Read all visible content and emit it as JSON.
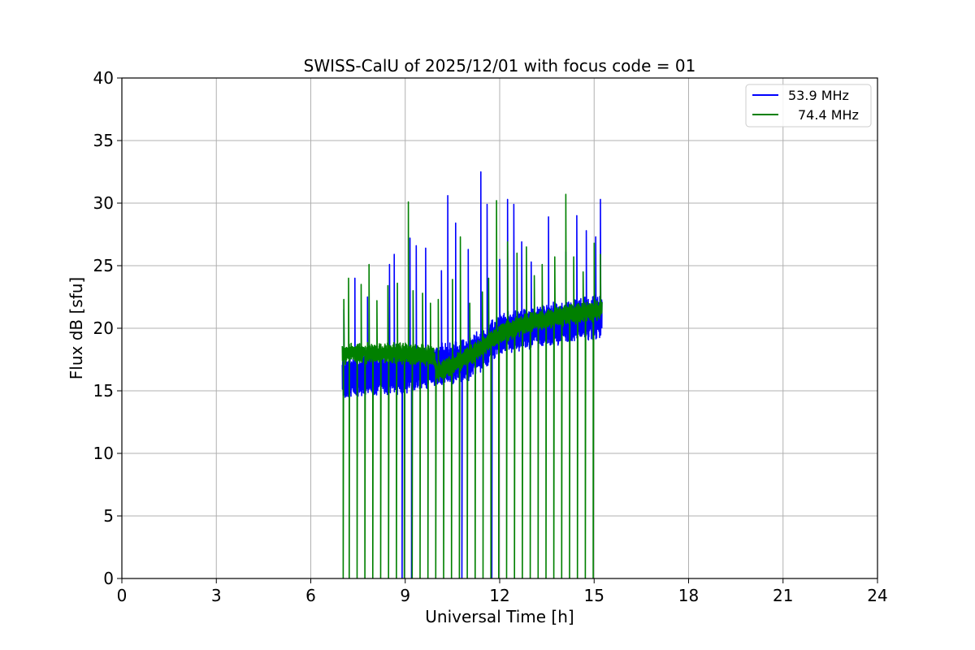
{
  "chart_data": {
    "type": "line",
    "title": "SWISS-CalU of 2025/12/01 with focus code = 01",
    "xlabel": "Universal Time [h]",
    "ylabel": "Flux dB [sfu]",
    "xlim": [
      0,
      24
    ],
    "ylim": [
      0,
      40
    ],
    "xticks": [
      0,
      3,
      6,
      9,
      12,
      15,
      18,
      21,
      24
    ],
    "yticks": [
      0,
      5,
      10,
      15,
      20,
      25,
      30,
      35,
      40
    ],
    "grid": true,
    "legend_position": "top-right",
    "x_range_of_data": [
      7.0,
      15.25
    ],
    "series": [
      {
        "name": "53.9 MHz",
        "color": "#0000ff",
        "baseline": [
          [
            7.0,
            16.0
          ],
          [
            9.0,
            16.5
          ],
          [
            10.0,
            17.0
          ],
          [
            11.0,
            17.5
          ],
          [
            12.0,
            19.5
          ],
          [
            13.0,
            20.0
          ],
          [
            14.0,
            20.5
          ],
          [
            15.25,
            21.0
          ]
        ],
        "oscillation_amplitude": 1.5,
        "spikes": [
          [
            7.05,
            21.5
          ],
          [
            7.4,
            24.0
          ],
          [
            7.8,
            22.5
          ],
          [
            8.5,
            25.1
          ],
          [
            8.65,
            25.9
          ],
          [
            9.15,
            27.2
          ],
          [
            9.35,
            26.6
          ],
          [
            9.65,
            26.4
          ],
          [
            10.15,
            24.6
          ],
          [
            10.35,
            30.6
          ],
          [
            10.6,
            28.4
          ],
          [
            11.0,
            26.3
          ],
          [
            11.4,
            32.5
          ],
          [
            11.6,
            29.9
          ],
          [
            12.0,
            25.5
          ],
          [
            12.25,
            30.3
          ],
          [
            12.45,
            29.9
          ],
          [
            12.7,
            26.9
          ],
          [
            13.0,
            25.3
          ],
          [
            13.55,
            28.9
          ],
          [
            14.1,
            26.1
          ],
          [
            14.45,
            29.0
          ],
          [
            14.75,
            27.8
          ],
          [
            15.05,
            27.3
          ],
          [
            15.2,
            30.3
          ]
        ],
        "dropout_times": [
          8.9,
          9.2,
          10.8,
          11.75
        ]
      },
      {
        "name": "74.4 MHz",
        "color": "#008000",
        "baseline": [
          [
            7.0,
            18.0
          ],
          [
            9.0,
            18.0
          ],
          [
            9.9,
            17.8
          ],
          [
            10.0,
            16.5
          ],
          [
            10.5,
            17.0
          ],
          [
            11.0,
            17.8
          ],
          [
            12.0,
            19.5
          ],
          [
            13.0,
            20.5
          ],
          [
            14.0,
            21.0
          ],
          [
            15.25,
            21.5
          ]
        ],
        "oscillation_amplitude": 0.6,
        "spikes": [
          [
            7.05,
            22.3
          ],
          [
            7.2,
            24.0
          ],
          [
            7.6,
            23.5
          ],
          [
            7.85,
            25.1
          ],
          [
            8.1,
            22.2
          ],
          [
            8.45,
            23.4
          ],
          [
            8.75,
            23.6
          ],
          [
            9.1,
            30.1
          ],
          [
            9.25,
            23.0
          ],
          [
            9.55,
            22.8
          ],
          [
            9.8,
            22.0
          ],
          [
            10.05,
            22.3
          ],
          [
            10.5,
            23.9
          ],
          [
            10.75,
            27.3
          ],
          [
            11.05,
            22.0
          ],
          [
            11.45,
            22.9
          ],
          [
            11.65,
            24.0
          ],
          [
            11.9,
            30.2
          ],
          [
            12.25,
            26.9
          ],
          [
            12.55,
            26.0
          ],
          [
            12.85,
            26.5
          ],
          [
            13.1,
            24.2
          ],
          [
            13.35,
            25.1
          ],
          [
            13.75,
            25.7
          ],
          [
            14.1,
            30.7
          ],
          [
            14.35,
            25.7
          ],
          [
            14.65,
            24.5
          ],
          [
            15.0,
            26.8
          ],
          [
            15.2,
            25.9
          ]
        ],
        "drop_times": [
          7.03,
          7.22,
          7.47,
          7.72,
          7.97,
          8.22,
          8.47,
          8.72,
          8.97,
          9.22,
          9.47,
          9.72,
          9.97,
          10.22,
          10.47,
          10.72,
          10.97,
          11.22,
          11.47,
          11.72,
          11.97,
          12.22,
          12.47,
          12.72,
          12.97,
          13.22,
          13.47,
          13.72,
          13.97,
          14.22,
          14.47,
          14.72,
          14.97
        ]
      }
    ]
  }
}
